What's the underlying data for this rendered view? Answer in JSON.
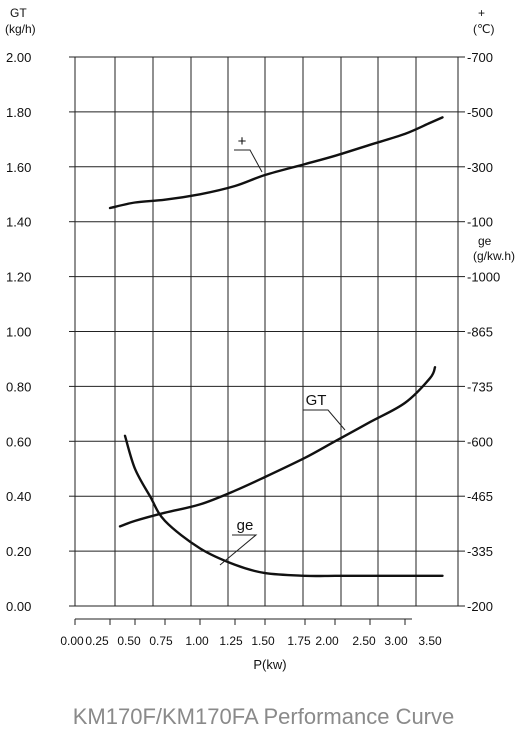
{
  "caption": "KM170F/KM170FA Performance Curve",
  "chart_data": {
    "type": "line",
    "xlabel": "P(kw)",
    "x_ticks": [
      "0.00",
      "0.25",
      "0.50",
      "0.75",
      "1.00",
      "1.25",
      "1.50",
      "1.75",
      "2.00",
      "2.50",
      "3.00",
      "3.50"
    ],
    "left_axis": {
      "label_line1": "GT",
      "label_line2": "(kg/h)",
      "range": [
        0.0,
        2.0
      ],
      "ticks": [
        "2.00",
        "1.80",
        "1.60",
        "1.40",
        "1.20",
        "1.00",
        "0.80",
        "0.60",
        "0.40",
        "0.20",
        "0.00"
      ]
    },
    "right_axis_upper": {
      "label_line1": "+",
      "label_line2": "(℃)",
      "ticks": [
        "-700",
        "-500",
        "-300",
        "-100"
      ]
    },
    "right_axis_lower": {
      "label_line1": "ge",
      "label_line2": "(g/kw.h)",
      "ticks": [
        "-1000",
        "-865",
        "-735",
        "-600",
        "-465",
        "-335",
        "-200"
      ]
    },
    "series": [
      {
        "name": "+",
        "points": [
          [
            0.25,
            1.45
          ],
          [
            0.5,
            1.47
          ],
          [
            0.75,
            1.48
          ],
          [
            1.0,
            1.5
          ],
          [
            1.25,
            1.53
          ],
          [
            1.5,
            1.57
          ],
          [
            1.75,
            1.61
          ],
          [
            2.0,
            1.64
          ],
          [
            2.5,
            1.68
          ],
          [
            3.0,
            1.72
          ],
          [
            3.5,
            1.76
          ],
          [
            3.75,
            1.78
          ]
        ]
      },
      {
        "name": "GT",
        "points": [
          [
            0.35,
            0.29
          ],
          [
            0.5,
            0.31
          ],
          [
            0.75,
            0.34
          ],
          [
            1.0,
            0.37
          ],
          [
            1.25,
            0.42
          ],
          [
            1.5,
            0.47
          ],
          [
            1.75,
            0.54
          ],
          [
            2.0,
            0.6
          ],
          [
            2.5,
            0.67
          ],
          [
            3.0,
            0.74
          ],
          [
            3.5,
            0.83
          ],
          [
            3.6,
            0.87
          ]
        ]
      },
      {
        "name": "ge",
        "points": [
          [
            0.4,
            0.62
          ],
          [
            0.5,
            0.5
          ],
          [
            0.625,
            0.4
          ],
          [
            0.75,
            0.31
          ],
          [
            1.0,
            0.21
          ],
          [
            1.25,
            0.15
          ],
          [
            1.5,
            0.12
          ],
          [
            1.75,
            0.11
          ],
          [
            2.0,
            0.11
          ],
          [
            2.5,
            0.11
          ],
          [
            3.0,
            0.11
          ],
          [
            3.5,
            0.11
          ],
          [
            3.75,
            0.11
          ]
        ]
      }
    ],
    "grid": true
  }
}
